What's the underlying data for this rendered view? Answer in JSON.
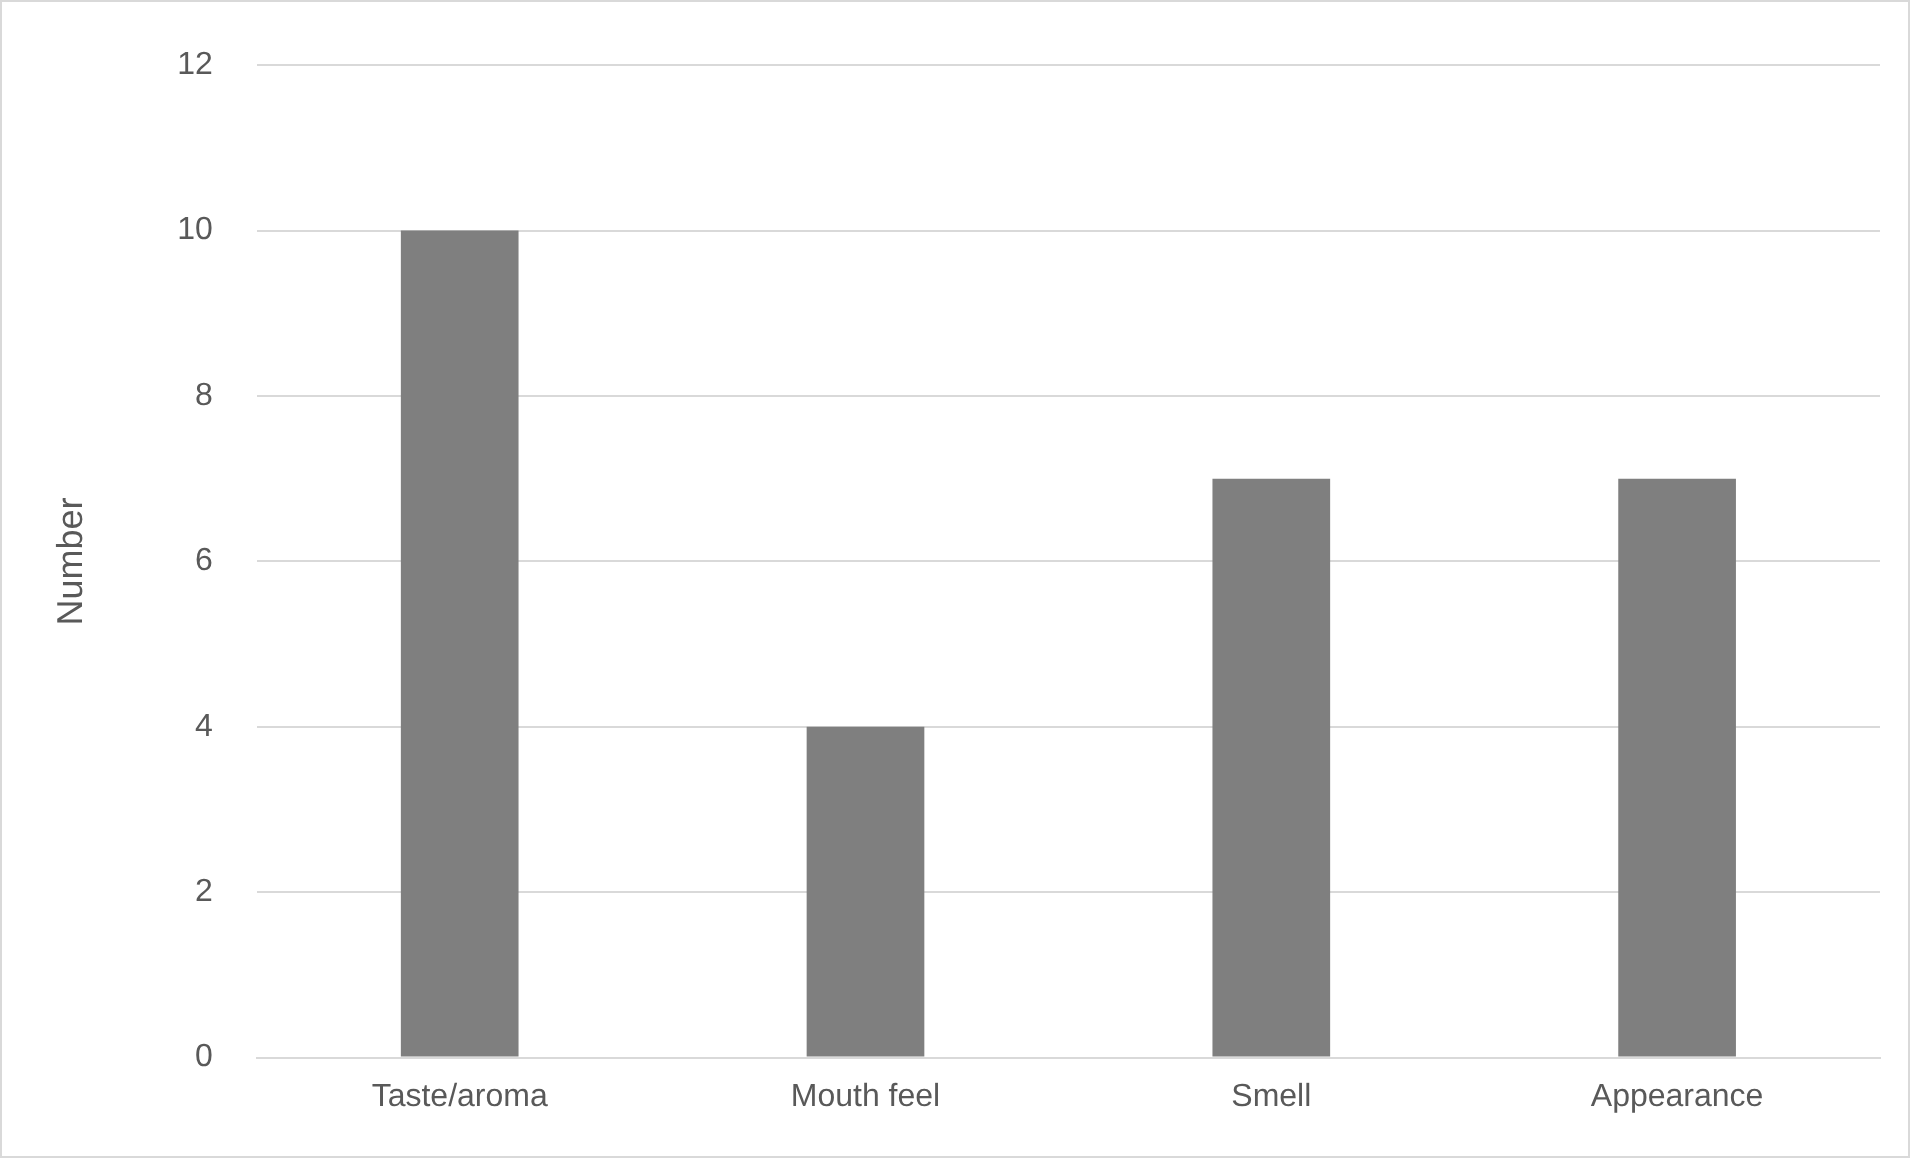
{
  "chart_data": {
    "type": "bar",
    "ylabel": "Number",
    "categories": [
      "Taste/aroma",
      "Mouth feel",
      "Smell",
      "Appearance"
    ],
    "values": [
      10,
      4,
      7,
      7
    ],
    "color": "#7f7f7f",
    "ylim": [
      0,
      12
    ],
    "yticks": [
      0,
      2,
      4,
      6,
      8,
      10,
      12
    ],
    "grid": "y",
    "legend": false
  }
}
